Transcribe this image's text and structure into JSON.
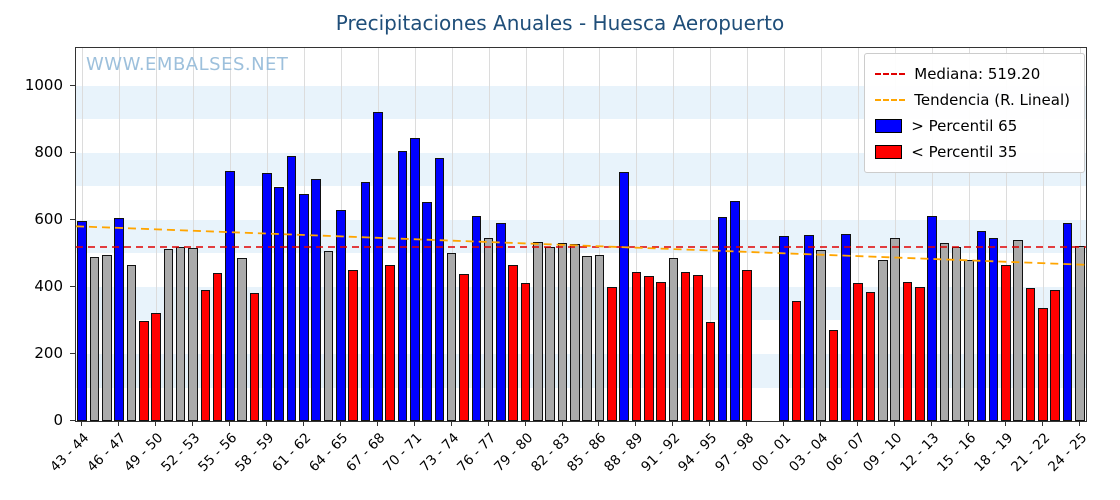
{
  "page": {
    "title": "Precipitaciones Anuales - Huesca Aeropuerto",
    "watermark": "WWW.EMBALSES.NET"
  },
  "legend": {
    "median_label": "Mediana: 519.20",
    "trend_label": "Tendencia (R. Lineal)",
    "p65_label": "> Percentil 65",
    "p35_label": "< Percentil 35"
  },
  "colors": {
    "blue": "#0000ff",
    "red": "#ff0000",
    "gray": "#aaaaaa",
    "median": "#e00000",
    "trend": "#ffa500",
    "band": "#e8f3fb",
    "grid": "#dcdcdc",
    "title": "#1f4e79",
    "watermark": "#9dc0dc"
  },
  "chart_data": {
    "type": "bar",
    "title": "Precipitaciones Anuales - Huesca Aeropuerto",
    "xlabel": "",
    "ylabel": "",
    "ylim": [
      0,
      1113
    ],
    "yticks": [
      0,
      200,
      400,
      600,
      800,
      1000
    ],
    "x_tick_every": 3,
    "median": 519.2,
    "trend": {
      "start": 581,
      "end": 466
    },
    "legend_position": "upper right",
    "categories": [
      "43 - 44",
      "44 - 45",
      "45 - 46",
      "46 - 47",
      "47 - 48",
      "48 - 49",
      "49 - 50",
      "50 - 51",
      "51 - 52",
      "52 - 53",
      "53 - 54",
      "54 - 55",
      "55 - 56",
      "56 - 57",
      "57 - 58",
      "58 - 59",
      "59 - 60",
      "60 - 61",
      "61 - 62",
      "62 - 63",
      "63 - 64",
      "64 - 65",
      "65 - 66",
      "66 - 67",
      "67 - 68",
      "68 - 69",
      "69 - 70",
      "70 - 71",
      "71 - 72",
      "72 - 73",
      "73 - 74",
      "74 - 75",
      "75 - 76",
      "76 - 77",
      "77 - 78",
      "78 - 79",
      "79 - 80",
      "80 - 81",
      "81 - 82",
      "82 - 83",
      "83 - 84",
      "84 - 85",
      "85 - 86",
      "86 - 87",
      "87 - 88",
      "88 - 89",
      "89 - 90",
      "90 - 91",
      "91 - 92",
      "92 - 93",
      "93 - 94",
      "94 - 95",
      "95 - 96",
      "96 - 97",
      "97 - 98",
      "98 - 99",
      "99 - 00",
      "00 - 01",
      "01 - 02",
      "02 - 03",
      "03 - 04",
      "04 - 05",
      "05 - 06",
      "06 - 07",
      "07 - 08",
      "08 - 09",
      "09 - 10",
      "10 - 11",
      "11 - 12",
      "12 - 13",
      "13 - 14",
      "14 - 15",
      "15 - 16",
      "16 - 17",
      "17 - 18",
      "18 - 19",
      "19 - 20",
      "20 - 21",
      "21 - 22",
      "22 - 23",
      "23 - 24",
      "24 - 25"
    ],
    "values": [
      597,
      490,
      495,
      605,
      467,
      298,
      322,
      512,
      520,
      516,
      390,
      441,
      746,
      486,
      381,
      740,
      699,
      791,
      676,
      721,
      506,
      631,
      452,
      714,
      921,
      465,
      806,
      844,
      655,
      786,
      501,
      439,
      612,
      545,
      590,
      466,
      411,
      535,
      519,
      532,
      528,
      492,
      496,
      401,
      744,
      446,
      434,
      415,
      487,
      444,
      436,
      296,
      609,
      657,
      450,
      null,
      null,
      551,
      359,
      556,
      509,
      271,
      557,
      412,
      386,
      479,
      546,
      416,
      401,
      611,
      531,
      519,
      481,
      566,
      547,
      466,
      541,
      396,
      336,
      390,
      592,
      521
    ],
    "classes": [
      "blue",
      "gray",
      "gray",
      "blue",
      "gray",
      "red",
      "red",
      "gray",
      "gray",
      "gray",
      "red",
      "red",
      "blue",
      "gray",
      "red",
      "blue",
      "blue",
      "blue",
      "blue",
      "blue",
      "gray",
      "blue",
      "red",
      "blue",
      "blue",
      "red",
      "blue",
      "blue",
      "blue",
      "blue",
      "gray",
      "red",
      "blue",
      "gray",
      "blue",
      "red",
      "red",
      "gray",
      "gray",
      "gray",
      "gray",
      "gray",
      "gray",
      "red",
      "blue",
      "red",
      "red",
      "red",
      "gray",
      "red",
      "red",
      "red",
      "blue",
      "blue",
      "red",
      null,
      null,
      "blue",
      "red",
      "blue",
      "gray",
      "red",
      "blue",
      "red",
      "red",
      "gray",
      "gray",
      "red",
      "red",
      "blue",
      "gray",
      "gray",
      "gray",
      "blue",
      "blue",
      "red",
      "gray",
      "red",
      "red",
      "red",
      "blue",
      "gray"
    ]
  }
}
